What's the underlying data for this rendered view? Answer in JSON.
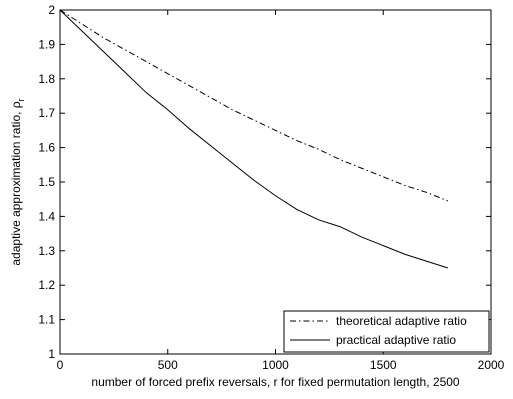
{
  "chart_data": {
    "type": "line",
    "title": "",
    "xlabel": "number of forced prefix reversals, r for fixed permutation length, 2500",
    "ylabel": "adaptive approximation ratio, ρ",
    "ylabel_subscript": "r",
    "xlim": [
      0,
      2000
    ],
    "ylim": [
      1,
      2
    ],
    "xticks": [
      0,
      500,
      1000,
      1500,
      2000
    ],
    "yticks": [
      1,
      1.1,
      1.2,
      1.3,
      1.4,
      1.5,
      1.6,
      1.7,
      1.8,
      1.9,
      2
    ],
    "xtick_labels": [
      "0",
      "500",
      "1000",
      "1500",
      "2000"
    ],
    "ytick_labels": [
      "1",
      "1.1",
      "1.2",
      "1.3",
      "1.4",
      "1.5",
      "1.6",
      "1.7",
      "1.8",
      "1.9",
      "2"
    ],
    "grid": false,
    "legend_position": "bottom-right",
    "series": [
      {
        "name": "theoretical adaptive ratio",
        "line_style": "dash-dot",
        "color": "#000000",
        "x": [
          0,
          100,
          200,
          300,
          400,
          500,
          600,
          700,
          800,
          900,
          1000,
          1100,
          1200,
          1300,
          1400,
          1500,
          1600,
          1700,
          1800
        ],
        "y": [
          2.0,
          1.96,
          1.92,
          1.885,
          1.85,
          1.815,
          1.78,
          1.745,
          1.71,
          1.68,
          1.65,
          1.62,
          1.595,
          1.565,
          1.54,
          1.515,
          1.49,
          1.47,
          1.445
        ]
      },
      {
        "name": "practical adaptive ratio",
        "line_style": "solid",
        "color": "#000000",
        "x": [
          0,
          100,
          200,
          300,
          400,
          500,
          600,
          700,
          800,
          900,
          1000,
          1100,
          1200,
          1300,
          1400,
          1500,
          1600,
          1700,
          1800
        ],
        "y": [
          2.0,
          1.94,
          1.88,
          1.82,
          1.76,
          1.71,
          1.655,
          1.605,
          1.555,
          1.505,
          1.46,
          1.42,
          1.39,
          1.37,
          1.34,
          1.315,
          1.29,
          1.27,
          1.25
        ]
      }
    ]
  }
}
